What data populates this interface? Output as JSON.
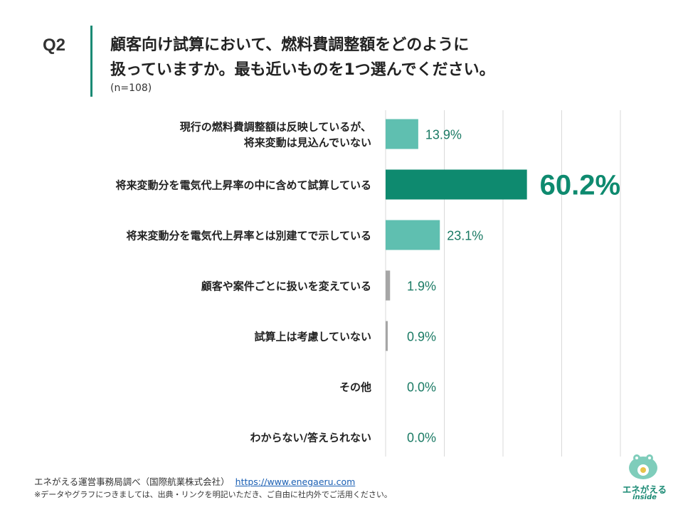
{
  "question": {
    "label": "Q2",
    "title_line1": "顧客向け試算において、燃料費調整額をどのように",
    "title_line2": "扱っていますか。最も近いものを1つ選んでください。",
    "sample": "(n=108)"
  },
  "chart_data": {
    "type": "bar",
    "orientation": "horizontal",
    "categories": [
      [
        "現行の燃料費調整額は反映しているが、",
        "将来変動は見込んでいない"
      ],
      [
        "将来変動分を電気代上昇率の中に含めて試算している"
      ],
      [
        "将来変動分を電気代上昇率とは別建てで示している"
      ],
      [
        "顧客や案件ごとに扱いを変えている"
      ],
      [
        "試算上は考慮していない"
      ],
      [
        "その他"
      ],
      [
        "わからない/答えられない"
      ]
    ],
    "values": [
      13.9,
      60.2,
      23.1,
      1.9,
      0.9,
      0.0,
      0.0
    ],
    "data_labels": [
      "13.9%",
      "60.2%",
      "23.1%",
      "1.9%",
      "0.9%",
      "0.0%",
      "0.0%"
    ],
    "xlim": [
      0,
      100
    ],
    "grid": true,
    "colors": {
      "highlight": "#0e8a6f",
      "normal": "#5fbfb0",
      "minor": "#a6a6a6",
      "label_text": "#1a7a64"
    }
  },
  "footer": {
    "source": "エネがえる運営事務局調べ（国際航業株式会社）",
    "url": "https://www.enegaeru.com",
    "note": "※データやグラフにつきましては、出典・リンクを明記いただき、ご自由に社内外でご活用ください。"
  },
  "logo": {
    "text1": "エネがえる",
    "text2": "inside"
  }
}
